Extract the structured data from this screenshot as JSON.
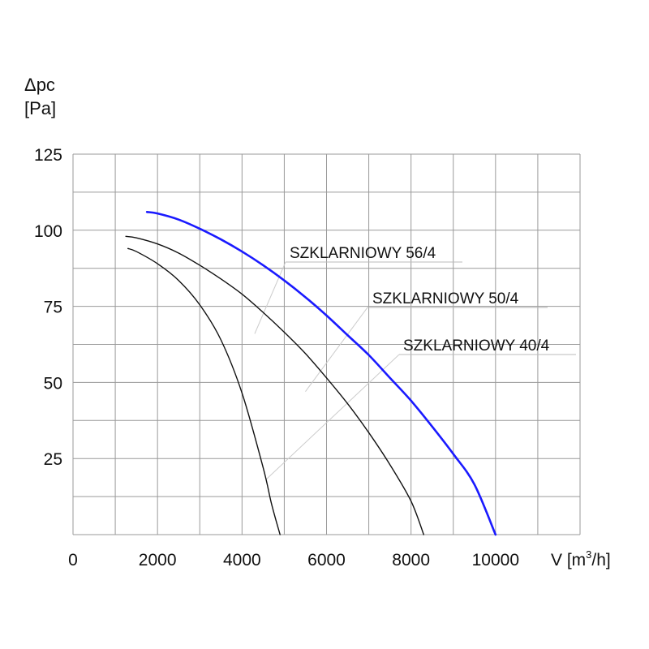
{
  "chart_data": {
    "type": "line",
    "ylabel_line1": "Δpc",
    "ylabel_line2": "[Pa]",
    "xlabel": "V [m³/h]",
    "xlabel_main": "V [m",
    "xlabel_sup": "3",
    "xlabel_tail": "/h]",
    "xlim": [
      0,
      12000
    ],
    "ylim": [
      0,
      125
    ],
    "grid": true,
    "x_tick_values": [
      0,
      2000,
      4000,
      6000,
      8000,
      10000
    ],
    "x_tick_labels": [
      "0",
      "2000",
      "4000",
      "6000",
      "8000",
      "10000"
    ],
    "y_tick_values": [
      25,
      50,
      75,
      100,
      125
    ],
    "y_tick_labels": [
      "25",
      "50",
      "75",
      "100",
      "125"
    ],
    "series": [
      {
        "name": "SZKLARNIOWY 56/4",
        "color": "#1a1aff",
        "x": [
          1750,
          2000,
          2500,
          3000,
          3500,
          4000,
          4500,
          5000,
          5500,
          6000,
          6500,
          7000,
          7500,
          8000,
          8500,
          9000,
          9500,
          10000
        ],
        "y": [
          106,
          105.5,
          103.5,
          100.5,
          97,
          93,
          88.5,
          83.5,
          78,
          72,
          65.5,
          59,
          51.5,
          44,
          35.5,
          26.5,
          16.5,
          0
        ]
      },
      {
        "name": "SZKLARNIOWY 50/4",
        "color": "#111111",
        "x": [
          1250,
          1500,
          2000,
          2500,
          3000,
          3500,
          4000,
          4500,
          5000,
          5500,
          6000,
          6500,
          7000,
          7500,
          8000,
          8300
        ],
        "y": [
          98,
          97.5,
          95.5,
          92.5,
          88.5,
          84,
          79,
          73,
          66.5,
          59.5,
          51.5,
          43,
          33.5,
          23,
          11,
          0
        ]
      },
      {
        "name": "SZKLARNIOWY 40/4",
        "color": "#111111",
        "x": [
          1300,
          1500,
          2000,
          2500,
          3000,
          3500,
          4000,
          4500,
          4700,
          4900
        ],
        "y": [
          94,
          93,
          89,
          83.5,
          75.5,
          64,
          46.5,
          22,
          10,
          0
        ]
      }
    ],
    "annotations": [
      {
        "text": "SZKLARNIOWY 56/4",
        "series": "SZKLARNIOWY 56/4"
      },
      {
        "text": "SZKLARNIOWY 50/4",
        "series": "SZKLARNIOWY 50/4"
      },
      {
        "text": "SZKLARNIOWY 40/4",
        "series": "SZKLARNIOWY 40/4"
      }
    ]
  }
}
